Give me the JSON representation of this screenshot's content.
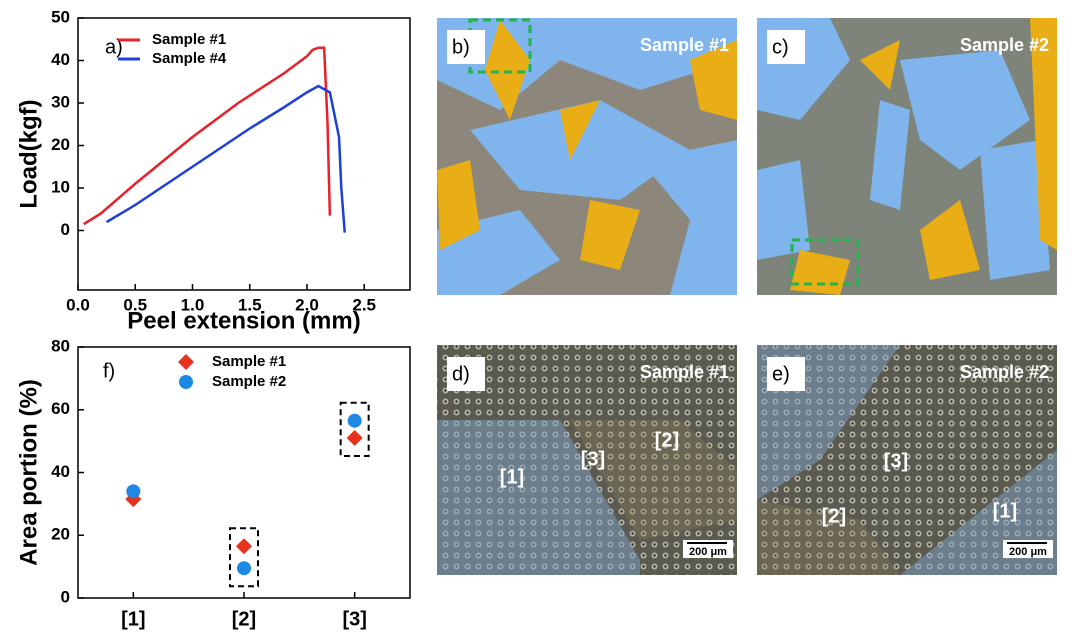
{
  "chart_data": [
    {
      "type": "line",
      "panel_label": "a)",
      "x_label": "Peel extension (mm)",
      "y_label": "Load(kgf)",
      "xlim": [
        0,
        2.9
      ],
      "xticks": [
        {
          "value": 0,
          "label": "0.0"
        },
        0.5,
        {
          "value": 1,
          "label": "1.0"
        },
        1.5,
        {
          "value": 2,
          "label": "2.0"
        },
        2.5
      ],
      "ylim": [
        -14,
        50
      ],
      "yticks": [
        0,
        10,
        20,
        30,
        40,
        50
      ],
      "series": [
        {
          "name": "Sample #1",
          "color": "#e8202a",
          "x": [
            0.05,
            0.2,
            0.5,
            1.0,
            1.4,
            1.8,
            2.0,
            2.05,
            2.1,
            2.15,
            2.18,
            2.2
          ],
          "values": [
            1.5,
            4,
            11,
            22,
            30,
            37,
            41,
            42.5,
            43,
            43,
            25,
            3.5
          ]
        },
        {
          "name": "Sample #4",
          "color": "#1f3fd8",
          "x": [
            0.25,
            0.5,
            1.0,
            1.5,
            1.8,
            2.0,
            2.1,
            2.2,
            2.28,
            2.3,
            2.33
          ],
          "values": [
            2,
            6,
            15,
            24,
            29,
            32.5,
            34,
            32.5,
            22,
            10,
            -0.5
          ]
        }
      ]
    },
    {
      "type": "scatter",
      "panel_label": "f)",
      "y_label": "Area portion (%)",
      "categories": [
        "[1]",
        "[2]",
        "[3]"
      ],
      "ylim": [
        0,
        80
      ],
      "yticks": [
        0,
        20,
        40,
        60,
        80
      ],
      "series": [
        {
          "name": "Sample #1",
          "color": "#e8321e",
          "marker": "diamond",
          "values": [
            31.5,
            16.5,
            51
          ]
        },
        {
          "name": "Sample #2",
          "color": "#1e88e5",
          "marker": "circle",
          "values": [
            34,
            9.5,
            56.5
          ]
        }
      ]
    }
  ],
  "images": [
    {
      "label": "b)",
      "sample": "Sample #1"
    },
    {
      "label": "c)",
      "sample": "Sample #2"
    },
    {
      "label": "d)",
      "sample": "Sample #1",
      "regions": [
        "[1]",
        "[3]",
        "[2]"
      ],
      "scale_bar": "200 μm"
    },
    {
      "label": "e)",
      "sample": "Sample #2",
      "regions": [
        "[3]",
        "[2]",
        "[1]"
      ],
      "scale_bar": "200 μm"
    }
  ]
}
